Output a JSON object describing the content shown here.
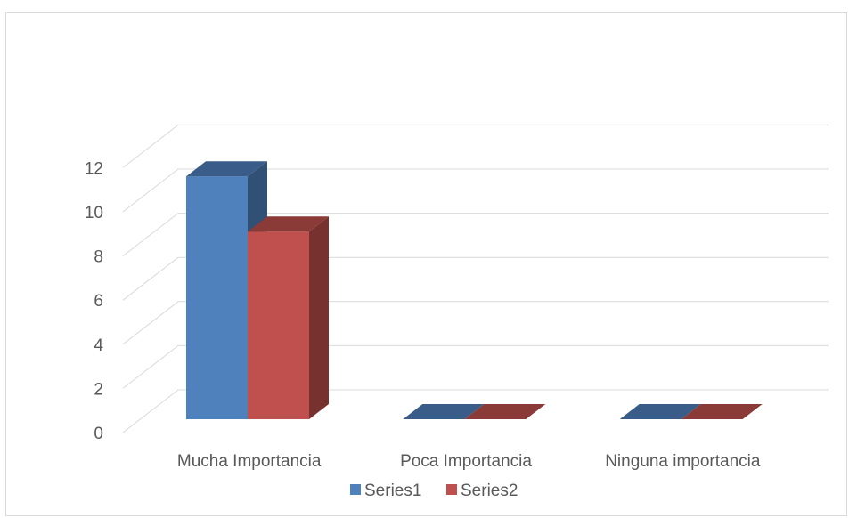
{
  "chart_data": {
    "type": "bar",
    "title": "",
    "xlabel": "",
    "ylabel": "",
    "categories": [
      "Mucha Importancia",
      "Poca Importancia",
      "Ninguna importancia"
    ],
    "series": [
      {
        "name": "Series1",
        "values": [
          11,
          0,
          0
        ],
        "color": "#4f81bd"
      },
      {
        "name": "Series2",
        "values": [
          8.5,
          0,
          0
        ],
        "color": "#c0504d"
      }
    ],
    "yticks": [
      "0",
      "2",
      "4",
      "6",
      "8",
      "10",
      "12"
    ],
    "ylim": [
      0,
      12
    ],
    "grid": true,
    "legend_position": "bottom",
    "style": "3d-clustered-column"
  }
}
